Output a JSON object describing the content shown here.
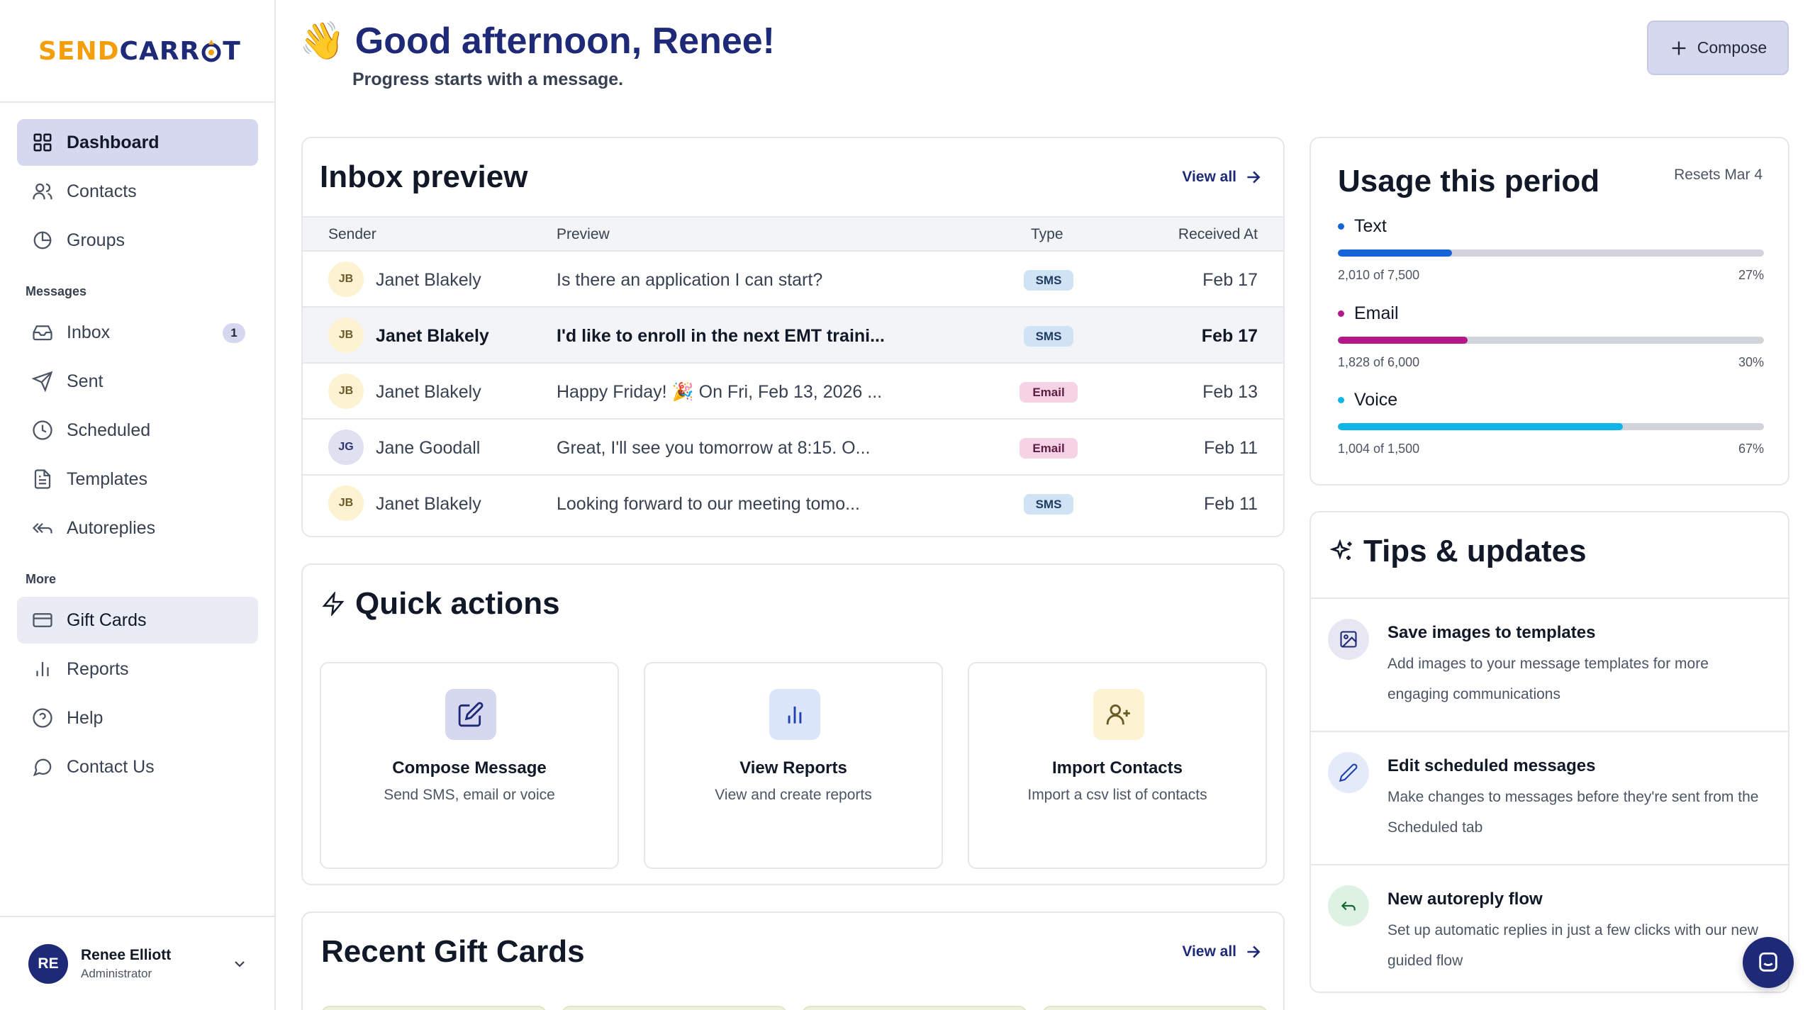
{
  "brand": {
    "logo_part1": "SEND",
    "logo_part2": "CARR",
    "logo_part3": "T"
  },
  "sidebar": {
    "items_top": [
      {
        "label": "Dashboard",
        "icon": "grid-icon"
      },
      {
        "label": "Contacts",
        "icon": "users-icon"
      },
      {
        "label": "Groups",
        "icon": "pie-chart-icon"
      }
    ],
    "messages_heading": "Messages",
    "items_messages": [
      {
        "label": "Inbox",
        "icon": "inbox-icon",
        "badge": "1"
      },
      {
        "label": "Sent",
        "icon": "send-icon"
      },
      {
        "label": "Scheduled",
        "icon": "clock-icon"
      },
      {
        "label": "Templates",
        "icon": "file-text-icon"
      },
      {
        "label": "Autoreplies",
        "icon": "reply-all-icon"
      }
    ],
    "more_heading": "More",
    "items_more": [
      {
        "label": "Gift Cards",
        "icon": "credit-card-icon"
      },
      {
        "label": "Reports",
        "icon": "bar-chart-icon"
      },
      {
        "label": "Help",
        "icon": "help-circle-icon"
      },
      {
        "label": "Contact Us",
        "icon": "message-circle-icon"
      }
    ],
    "user": {
      "initials": "RE",
      "name": "Renee Elliott",
      "role": "Administrator"
    }
  },
  "header": {
    "emoji": "👋",
    "title": "Good afternoon, Renee!",
    "subtitle": "Progress starts with a message.",
    "compose_label": "Compose"
  },
  "inbox": {
    "title": "Inbox preview",
    "view_all": "View all",
    "columns": {
      "sender": "Sender",
      "preview": "Preview",
      "type": "Type",
      "received": "Received At"
    },
    "rows": [
      {
        "initials": "JB",
        "sender": "Janet Blakely",
        "preview": "Is there an application I can start?",
        "type": "SMS",
        "date": "Feb 17"
      },
      {
        "initials": "JB",
        "sender": "Janet Blakely",
        "preview": "I'd like to enroll in the next EMT traini...",
        "type": "SMS",
        "date": "Feb 17"
      },
      {
        "initials": "JB",
        "sender": "Janet Blakely",
        "preview": "Happy Friday! 🎉 On Fri, Feb 13, 2026 ...",
        "type": "Email",
        "date": "Feb 13"
      },
      {
        "initials": "JG",
        "sender": "Jane Goodall",
        "preview": "Great, I'll see you tomorrow at 8:15. O...",
        "type": "Email",
        "date": "Feb 11"
      },
      {
        "initials": "JB",
        "sender": "Janet Blakely",
        "preview": "Looking forward to our meeting tomo...",
        "type": "SMS",
        "date": "Feb 11"
      }
    ]
  },
  "usage": {
    "title": "Usage this period",
    "resets": "Resets Mar 4",
    "meters": [
      {
        "label": "Text",
        "used": "2,010 of 7,500",
        "percent": "27%",
        "fraction": 0.268,
        "color": "#1565d8"
      },
      {
        "label": "Email",
        "used": "1,828 of 6,000",
        "percent": "30%",
        "fraction": 0.305,
        "color": "#b5168a"
      },
      {
        "label": "Voice",
        "used": "1,004 of 1,500",
        "percent": "67%",
        "fraction": 0.669,
        "color": "#0fb5e6"
      }
    ]
  },
  "quick_actions": {
    "title": "Quick actions",
    "items": [
      {
        "name": "Compose Message",
        "desc": "Send SMS, email or voice",
        "icon": "edit-icon",
        "bg": "#d5d8ee"
      },
      {
        "name": "View Reports",
        "desc": "View and create reports",
        "icon": "bar-chart-icon",
        "bg": "#dbe6fb"
      },
      {
        "name": "Import Contacts",
        "desc": "Import a csv list of contacts",
        "icon": "user-plus-icon",
        "bg": "#fdf3d3"
      }
    ]
  },
  "tips": {
    "title": "Tips & updates",
    "items": [
      {
        "name": "Save images to templates",
        "desc": "Add images to your message templates for more engaging communications",
        "icon": "image-icon",
        "bg": "#e6e7f3"
      },
      {
        "name": "Edit scheduled messages",
        "desc": "Make changes to messages before they're sent from the Scheduled tab",
        "icon": "pencil-icon",
        "bg": "#e3ebfb"
      },
      {
        "name": "New autoreply flow",
        "desc": "Set up automatic replies in just a few clicks with our new guided flow",
        "icon": "reply-icon",
        "bg": "#ddf2e3"
      }
    ]
  },
  "gift_cards": {
    "title": "Recent Gift Cards",
    "view_all": "View all"
  }
}
